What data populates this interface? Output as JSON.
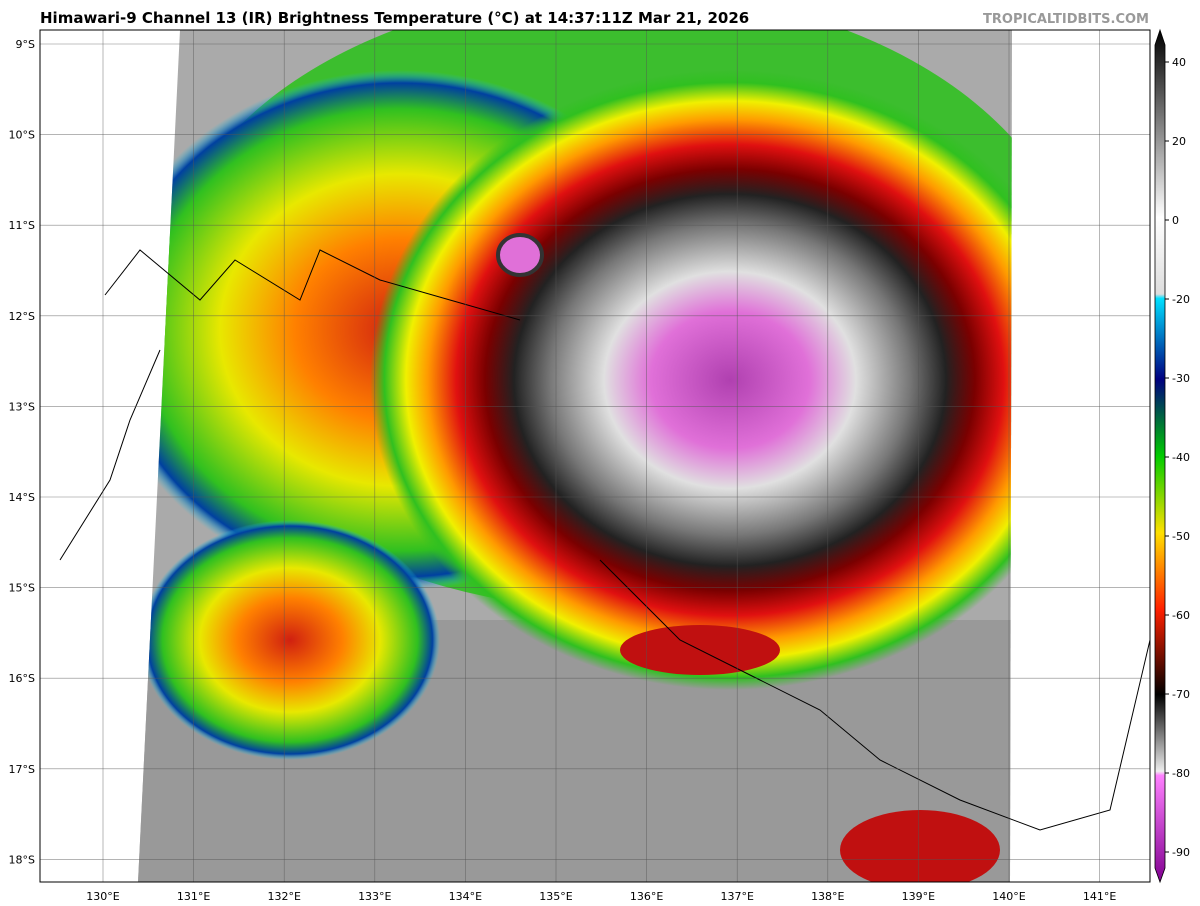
{
  "title": "Himawari-9 Channel 13 (IR) Brightness Temperature (°C) at 14:37:11Z Mar 21, 2026",
  "source": "TROPICALTIDBITS.COM",
  "latitudes": [
    "9°S",
    "10°S",
    "11°S",
    "12°S",
    "13°S",
    "14°S",
    "15°S",
    "16°S",
    "17°S",
    "18°S"
  ],
  "longitudes": [
    "130°E",
    "131°E",
    "132°E",
    "133°E",
    "134°E",
    "135°E",
    "136°E",
    "137°E",
    "138°E",
    "139°E",
    "140°E",
    "141°E"
  ],
  "colorbar": {
    "ticks": [
      40,
      20,
      0,
      -20,
      -30,
      -40,
      -50,
      -60,
      -70,
      -80,
      -90
    ]
  }
}
